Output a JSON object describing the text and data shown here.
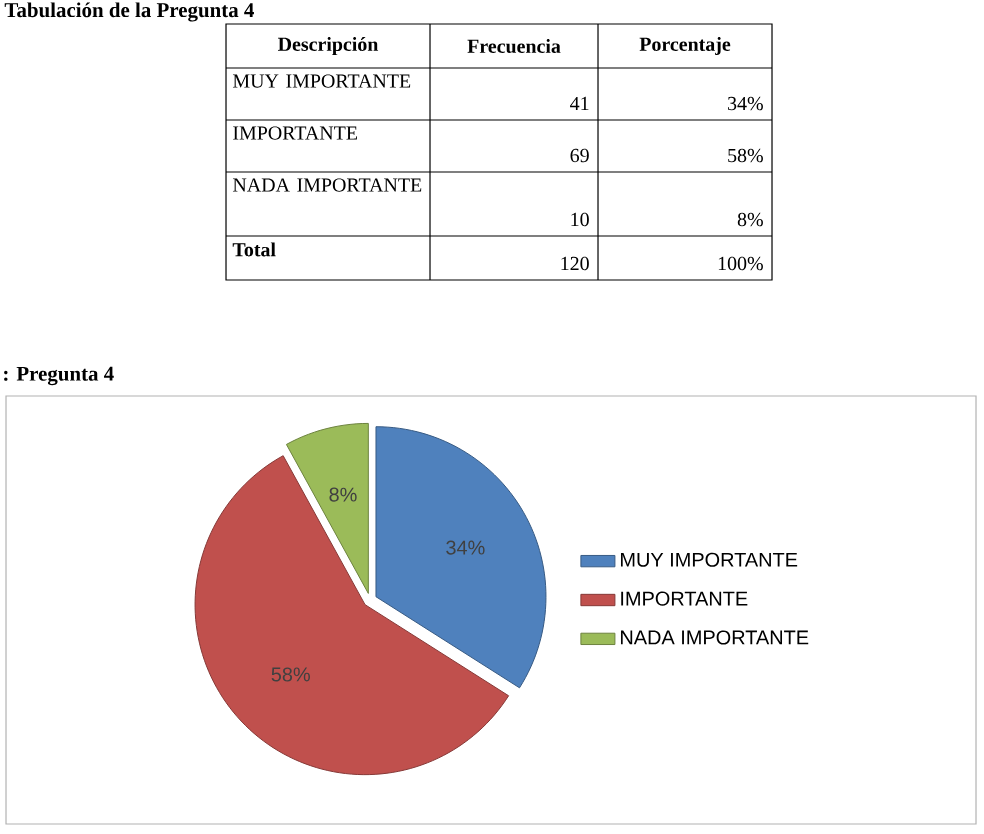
{
  "chart_data": [
    {
      "type": "other",
      "title": "Tabulación de la Pregunta 4",
      "annotations": [
        "Descripción",
        "Frecuencia",
        "Porcentaje",
        "MUY IMPORTANTE",
        "41",
        "34%",
        "IMPORTANTE",
        "69",
        "58%",
        "NADA IMPORTANTE",
        "10",
        "8%",
        "Total",
        "120",
        "100%"
      ]
    },
    {
      "type": "pie",
      "title": ": Pregunta 4",
      "categories": [
        "MUY IMPORTANTE",
        "IMPORTANTE",
        "NADA IMPORTANTE"
      ],
      "values": [
        34,
        58,
        8
      ],
      "colors": [
        "#4f81bd",
        "#c0504d",
        "#9bbb59"
      ],
      "value_labels": [
        "34%",
        "58%",
        "8%"
      ],
      "legend": "right"
    }
  ]
}
